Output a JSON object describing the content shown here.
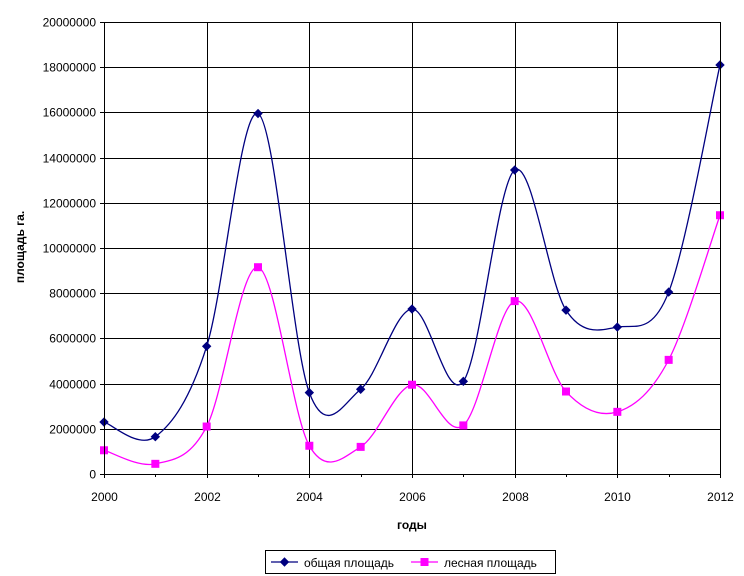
{
  "chart_data": {
    "type": "line",
    "title": "",
    "xlabel": "годы",
    "ylabel": "площадь га.",
    "xlim": [
      2000,
      2012
    ],
    "ylim": [
      0,
      20000000
    ],
    "x_ticks": [
      2000,
      2002,
      2004,
      2006,
      2008,
      2010,
      2012
    ],
    "y_ticks": [
      0,
      2000000,
      4000000,
      6000000,
      8000000,
      10000000,
      12000000,
      14000000,
      16000000,
      18000000,
      20000000
    ],
    "x_tick_labels": [
      "2000",
      "2002",
      "2004",
      "2006",
      "2008",
      "2010",
      "2012"
    ],
    "y_tick_labels": [
      "0",
      "2000000",
      "4000000",
      "6000000",
      "8000000",
      "10000000",
      "12000000",
      "14000000",
      "16000000",
      "18000000",
      "20000000"
    ],
    "grid": true,
    "legend_position": "bottom",
    "x": [
      2000,
      2001,
      2002,
      2003,
      2004,
      2005,
      2006,
      2007,
      2008,
      2009,
      2010,
      2011,
      2012
    ],
    "series": [
      {
        "name": "общая площадь",
        "color": "#000080",
        "marker": "diamond",
        "smooth": true,
        "values": [
          2300000,
          1650000,
          5650000,
          15950000,
          3600000,
          3750000,
          7300000,
          4100000,
          13450000,
          7250000,
          6500000,
          8050000,
          18100000
        ]
      },
      {
        "name": "лесная площадь",
        "color": "#ff00ff",
        "marker": "square",
        "smooth": true,
        "values": [
          1050000,
          450000,
          2100000,
          9150000,
          1250000,
          1200000,
          3950000,
          2150000,
          7650000,
          3650000,
          2750000,
          5050000,
          11450000
        ]
      }
    ]
  }
}
